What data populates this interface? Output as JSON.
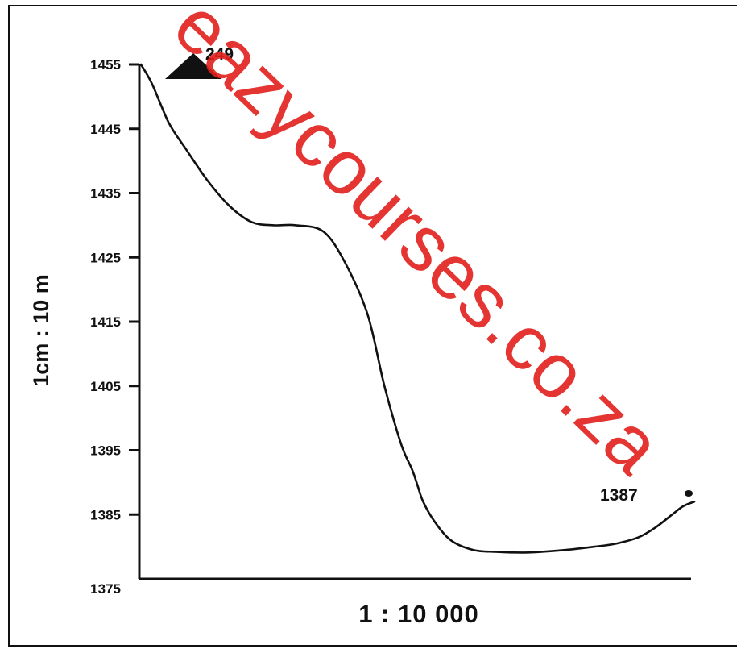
{
  "chart_data": {
    "type": "line",
    "y_ticks": [
      1455,
      1445,
      1435,
      1425,
      1415,
      1405,
      1395,
      1385,
      1375
    ],
    "ylim": [
      1375,
      1455
    ],
    "vertical_scale": "1cm : 10 m",
    "horizontal_scale": "1 : 10 000",
    "marker_start": {
      "label": "249",
      "symbol": "triangle",
      "elevation": 1455
    },
    "marker_end": {
      "label": "1387",
      "symbol": "dot",
      "elevation": 1387
    },
    "profile": {
      "x": [
        0,
        0.02,
        0.05,
        0.08,
        0.12,
        0.16,
        0.2,
        0.24,
        0.28,
        0.33,
        0.37,
        0.41,
        0.44,
        0.47,
        0.49,
        0.5,
        0.51,
        0.53,
        0.56,
        0.6,
        0.64,
        0.67,
        0.7,
        0.74,
        0.78,
        0.82,
        0.86,
        0.9,
        0.93,
        0.96,
        0.98,
        1.0
      ],
      "y": [
        1455,
        1452,
        1446,
        1442,
        1437,
        1433,
        1430.5,
        1430,
        1430,
        1429,
        1424,
        1416,
        1405,
        1396,
        1392,
        1389.5,
        1387,
        1384,
        1381,
        1379.5,
        1379.2,
        1379.1,
        1379.1,
        1379.3,
        1379.6,
        1380,
        1380.5,
        1381.5,
        1383,
        1385,
        1386.3,
        1387
      ]
    }
  },
  "watermark": {
    "text": "eazycourses.co.za",
    "color": "#e2201c"
  }
}
